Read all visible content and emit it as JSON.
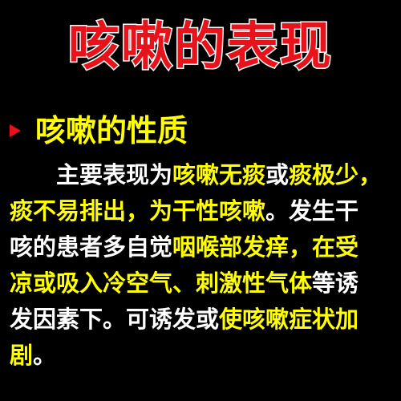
{
  "title": "咳嗽的表现",
  "subheading": "咳嗽的性质",
  "paragraph": {
    "line1": {
      "a": "主要表现为",
      "b": "咳嗽无痰",
      "c": "或",
      "d": "痰极少，"
    },
    "line2": {
      "a": "痰不易排出，为干性咳嗽",
      "b": "。发生干"
    },
    "line3": {
      "a": "咳的患者多自觉",
      "b": "咽喉部发痒，在受"
    },
    "line4": {
      "a": "凉或吸入冷空气、刺激性气体",
      "b": "等诱"
    },
    "line5": {
      "a": "发因素下。可诱发或",
      "b": "使咳嗽症状加"
    },
    "line6": {
      "a": "剧",
      "b": "。"
    }
  },
  "colors": {
    "background": "#000000",
    "title": "#e8121a",
    "title_outline": "#ffffff",
    "highlight": "#ffff00",
    "text": "#ffffff"
  }
}
